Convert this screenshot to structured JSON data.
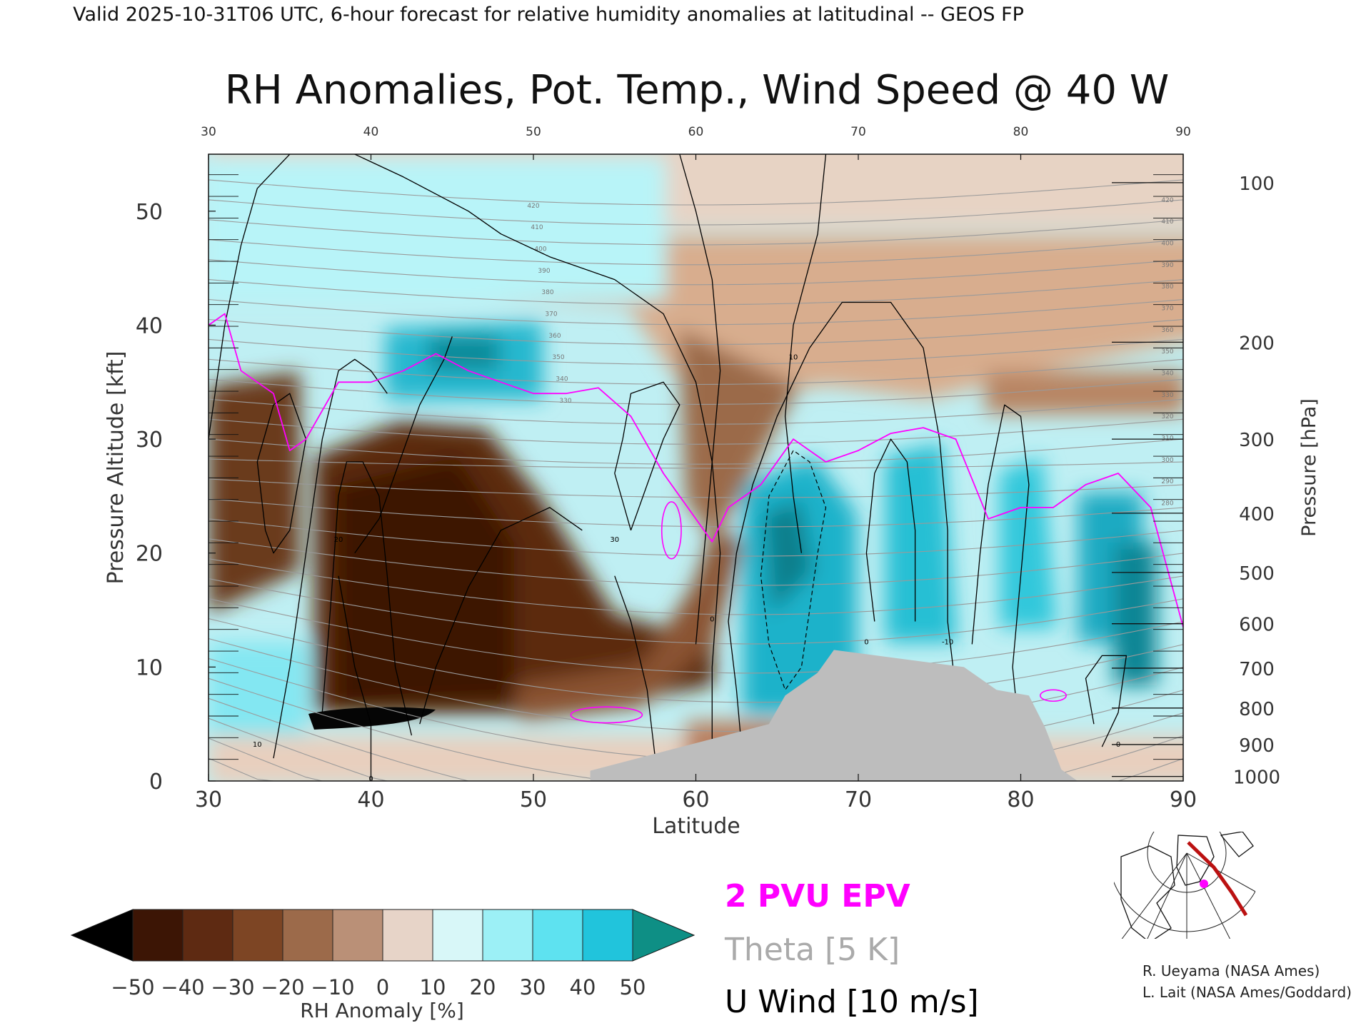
{
  "header": {
    "valid_line": "Valid 2025-10-31T06 UTC, 6-hour forecast for relative humidity anomalies at latitudinal -- GEOS FP"
  },
  "chart_data": {
    "type": "heatmap",
    "title": "RH Anomalies, Pot. Temp., Wind Speed @ 40 W",
    "xlabel": "Latitude",
    "ylabel_left": "Pressure Altitude [kft]",
    "ylabel_right": "Pressure [hPa]",
    "xlim": [
      30,
      90
    ],
    "ylim": [
      0,
      55
    ],
    "grid": false,
    "x_ticks": [
      "30",
      "40",
      "50",
      "60",
      "70",
      "80",
      "90"
    ],
    "top_ticks": [
      "30",
      "40",
      "50",
      "60",
      "70",
      "80",
      "90"
    ],
    "y_ticks": [
      {
        "v": 0,
        "label": "0"
      },
      {
        "v": 10,
        "label": "10"
      },
      {
        "v": 20,
        "label": "20"
      },
      {
        "v": 30,
        "label": "30"
      },
      {
        "v": 40,
        "label": "40"
      },
      {
        "v": 50,
        "label": "50"
      }
    ],
    "pressure_ticks": [
      {
        "kft": 52.5,
        "label": "100"
      },
      {
        "kft": 38.5,
        "label": "200"
      },
      {
        "kft": 30.0,
        "label": "300"
      },
      {
        "kft": 23.5,
        "label": "400"
      },
      {
        "kft": 18.3,
        "label": "500"
      },
      {
        "kft": 13.8,
        "label": "600"
      },
      {
        "kft": 9.9,
        "label": "700"
      },
      {
        "kft": 6.4,
        "label": "800"
      },
      {
        "kft": 3.2,
        "label": "900"
      },
      {
        "kft": 0.4,
        "label": "1000"
      }
    ],
    "theta_contours": {
      "labels": [
        "420",
        "410",
        "400",
        "390",
        "380",
        "370",
        "360",
        "350",
        "340",
        "330",
        "320",
        "310",
        "300",
        "290",
        "280"
      ],
      "interval_K": 5,
      "color": "#9a9a9a"
    },
    "epv_2pvu": {
      "color": "#ff00ff",
      "x": [
        30,
        31,
        32,
        33,
        34,
        35,
        36,
        38,
        40,
        42,
        44,
        46,
        48,
        50,
        52,
        54,
        56,
        58,
        60,
        61,
        62,
        64,
        66,
        68,
        70,
        72,
        74,
        76,
        78,
        80,
        82,
        84,
        86,
        88,
        90
      ],
      "y": [
        40,
        41,
        36,
        35,
        34,
        29,
        30,
        35,
        35,
        36,
        37.5,
        36,
        35,
        34,
        34,
        34.5,
        32,
        27,
        23,
        21,
        24,
        26,
        30,
        28,
        29,
        30.5,
        31,
        30,
        23,
        24,
        24,
        26,
        27,
        24,
        13.5
      ]
    },
    "u_wind_contours": {
      "interval_ms": 10,
      "labels": [
        "10",
        "20",
        "30",
        "0",
        "10",
        "0",
        "-10",
        "0",
        "10",
        "0"
      ],
      "color": "#000000"
    },
    "terrain_mask": {
      "color": "#bdbdbd",
      "x": [
        53.5,
        64.5,
        64.5,
        65.5,
        65.5,
        66.5,
        66.5,
        67.5,
        67.5,
        68.5,
        68.5,
        76.5,
        76.5,
        77.5,
        77.5,
        78.5,
        78.5,
        80.5,
        80.5,
        81.5,
        81.5,
        82.5,
        82.5,
        83.5,
        83.5
      ],
      "y": [
        0.9,
        5,
        5,
        7.5,
        7.5,
        8.5,
        8.5,
        9.5,
        9.5,
        11.5,
        11.5,
        10,
        10,
        9,
        9,
        8,
        8,
        7.5,
        7.5,
        4.7,
        4.7,
        1,
        1,
        0,
        0
      ]
    },
    "colorbar": {
      "label": "RH Anomaly [%]",
      "ticks": [
        "−50",
        "−40",
        "−30",
        "−20",
        "−10",
        "0",
        "10",
        "20",
        "30",
        "40",
        "50"
      ],
      "values": [
        -50,
        -40,
        -30,
        -20,
        -10,
        0,
        10,
        20,
        30,
        40,
        50
      ],
      "colors": [
        "#3c1505",
        "#5e2a12",
        "#7d4524",
        "#9c6a4a",
        "#ba9077",
        "#e7d4c8",
        "#d8f7f8",
        "#9cf0f6",
        "#5ee2f0",
        "#21c4dc",
        "#07909f"
      ],
      "under_color": "#000000",
      "over_color": "#0e8f85"
    },
    "legend": {
      "placement": "bottom-center",
      "items": [
        {
          "label": "2 PVU EPV",
          "color": "#ff00ff"
        },
        {
          "label": "Theta [5 K]",
          "color": "#aaaaaa"
        },
        {
          "label": "U Wind [10 m/s]",
          "color": "#000000"
        }
      ]
    },
    "inset_map": {
      "description_icon": "polar-stereographic-map",
      "track_color": "#bb1111",
      "marker_color": "#ff00ff"
    }
  },
  "credits": [
    "R. Ueyama (NASA Ames)",
    "L. Lait (NASA Ames/Goddard)"
  ]
}
